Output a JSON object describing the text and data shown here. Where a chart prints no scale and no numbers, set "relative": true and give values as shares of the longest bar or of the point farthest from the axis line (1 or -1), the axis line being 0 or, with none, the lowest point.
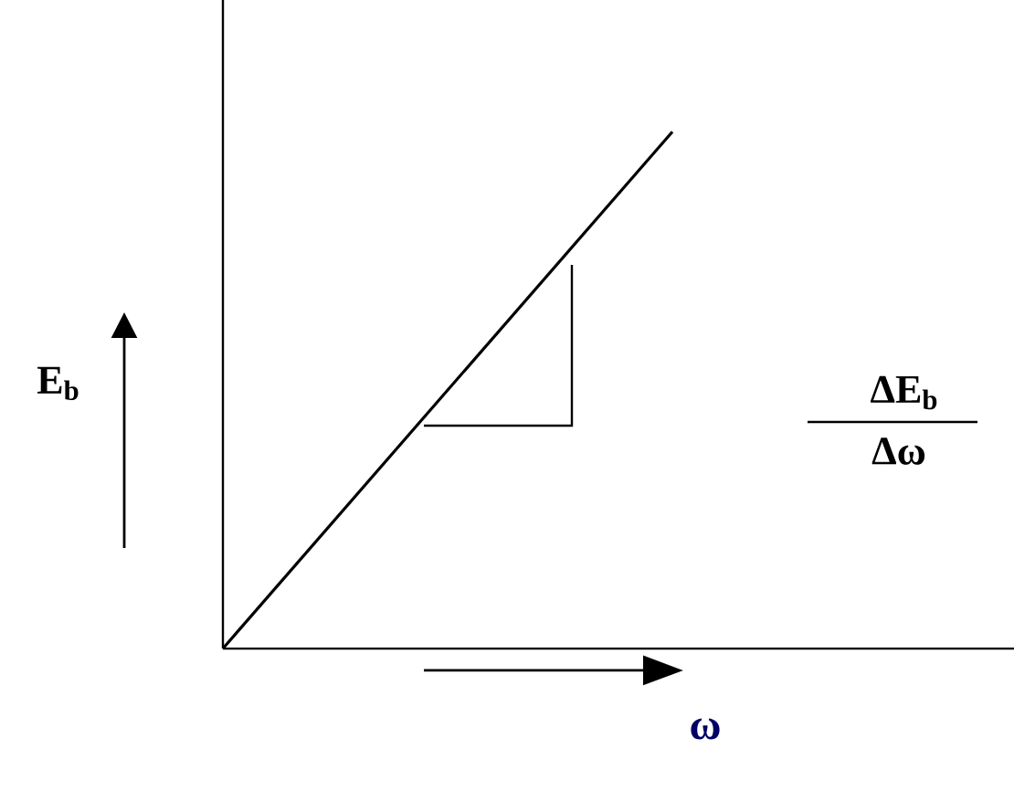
{
  "chart_data": {
    "type": "line",
    "relative": true,
    "xlabel": "ω",
    "ylabel": "E$_{b}$",
    "categories": [
      null,
      null
    ],
    "series": [
      {
        "color": "#000000",
        "values": [
          0,
          1
        ]
      }
    ],
    "annotations": [
      "ΔE$_{b}$",
      "Δω"
    ]
  }
}
